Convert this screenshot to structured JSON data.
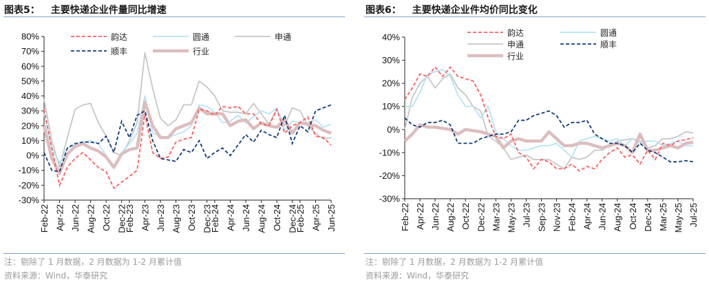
{
  "charts": [
    {
      "figure_label": "图表5：",
      "title": "主要快递企业件量同比增速",
      "note": "注：剔除了 1 月数据，2 月数据为 1-2 月累计值",
      "source": "资料来源：Wind，华泰研究"
    },
    {
      "figure_label": "图表6：",
      "title": "主要快递企业件均价同比变化",
      "note": "注：剔除了 1 月数据，2 月数据为 1-2 月累计值",
      "source": "资料来源：Wind，华泰研究"
    }
  ],
  "colors": {
    "yunda": "#ff5b5b",
    "yto": "#b5e3f6",
    "sto": "#c6c6c6",
    "sf": "#0d3a7c",
    "industry": "#dcbdbd",
    "axis": "#222222",
    "rule": "#7e9cc4"
  },
  "chart_data": [
    {
      "type": "line",
      "title": "主要快递企业件量同比增速",
      "ylim": [
        -30,
        80
      ],
      "yticks": [
        "80%",
        "70%",
        "60%",
        "50%",
        "40%",
        "30%",
        "20%",
        "10%",
        "0%",
        "-10%",
        "-20%",
        "-30%"
      ],
      "ytick_values": [
        80,
        70,
        60,
        50,
        40,
        30,
        20,
        10,
        0,
        -10,
        -20,
        -30
      ],
      "x": [
        "Feb-22",
        "Mar-22",
        "Apr-22",
        "May-22",
        "Jun-22",
        "Jul-22",
        "Aug-22",
        "Sep-22",
        "Oct-22",
        "Nov-22",
        "Dec-22",
        "Feb-23",
        "Mar-23",
        "Apr-23",
        "May-23",
        "Jun-23",
        "Jul-23",
        "Aug-23",
        "Sep-23",
        "Oct-23",
        "Nov-23",
        "Dec-23",
        "Feb-24",
        "Mar-24",
        "Apr-24",
        "May-24",
        "Jun-24",
        "Jul-24",
        "Aug-24",
        "Sep-24",
        "Oct-24",
        "Nov-24",
        "Dec-24",
        "Feb-25",
        "Mar-25",
        "Apr-25",
        "May-25",
        "Jun-25"
      ],
      "xticks": [
        "Feb-22",
        "Apr-22",
        "Jun-22",
        "Aug-22",
        "Oct-22",
        "Dec-22",
        "Feb-23",
        "Apr-23",
        "Jun-23",
        "Aug-23",
        "Oct-23",
        "Dec-23",
        "Feb-24",
        "Apr-24",
        "Jun-24",
        "Aug-24",
        "Oct-24",
        "Dec-24",
        "Feb-25",
        "Apr-25",
        "Jun-25"
      ],
      "legend_position": "top",
      "series": [
        {
          "key": "yunda",
          "name": "韵达",
          "style": "dashed",
          "values": [
            31,
            5,
            -20,
            -8,
            -2,
            2,
            -3,
            -8,
            -11,
            -22,
            -18,
            -14,
            -10,
            28,
            2,
            -2,
            -1,
            9,
            11,
            12,
            31,
            30,
            27,
            33,
            32,
            33,
            28,
            28,
            21,
            20,
            31,
            15,
            20,
            22,
            26,
            13,
            12,
            7
          ]
        },
        {
          "key": "yto",
          "name": "圆通",
          "style": "solid",
          "values": [
            28,
            5,
            -5,
            5,
            7,
            9,
            10,
            8,
            0,
            -8,
            2,
            8,
            15,
            40,
            15,
            13,
            12,
            14,
            16,
            20,
            34,
            33,
            29,
            22,
            23,
            27,
            22,
            26,
            30,
            28,
            32,
            17,
            23,
            22,
            22,
            24,
            19,
            21
          ]
        },
        {
          "key": "sto",
          "name": "申通",
          "style": "solid",
          "values": [
            38,
            10,
            -8,
            12,
            31,
            34,
            35,
            22,
            13,
            2,
            0,
            10,
            22,
            69,
            45,
            25,
            20,
            24,
            34,
            34,
            50,
            46,
            40,
            30,
            29,
            29,
            28,
            35,
            28,
            21,
            31,
            20,
            32,
            30,
            20,
            15,
            11,
            12
          ]
        },
        {
          "key": "sf",
          "name": "顺丰",
          "style": "dashed",
          "values": [
            2,
            -10,
            -11,
            5,
            8,
            9,
            9,
            8,
            13,
            2,
            23,
            12,
            27,
            30,
            10,
            -2,
            -3,
            -4,
            4,
            2,
            10,
            -2,
            2,
            5,
            0,
            7,
            14,
            9,
            17,
            14,
            12,
            27,
            8,
            20,
            16,
            30,
            32,
            34
          ]
        },
        {
          "key": "industry",
          "name": "行业",
          "style": "thick",
          "values": [
            20,
            -2,
            -12,
            1,
            6,
            8,
            5,
            3,
            -1,
            -8,
            1,
            4,
            5,
            36,
            20,
            12,
            12,
            18,
            20,
            22,
            32,
            28,
            28,
            28,
            20,
            23,
            24,
            18,
            22,
            20,
            19,
            24,
            15,
            22,
            21,
            20,
            17,
            15
          ]
        }
      ]
    },
    {
      "type": "line",
      "title": "主要快递企业件均价同比变化",
      "ylim": [
        -30,
        40
      ],
      "yticks": [
        "40%",
        "30%",
        "20%",
        "10%",
        "0%",
        "-10%",
        "-20%",
        "-30%"
      ],
      "ytick_values": [
        40,
        30,
        20,
        10,
        0,
        -10,
        -20,
        -30
      ],
      "x": [
        "Feb-22",
        "Mar-22",
        "Apr-22",
        "May-22",
        "Jun-22",
        "Jul-22",
        "Aug-22",
        "Sep-22",
        "Oct-22",
        "Nov-22",
        "Dec-22",
        "Feb-23",
        "Mar-23",
        "Apr-23",
        "May-23",
        "Jun-23",
        "Jul-23",
        "Aug-23",
        "Sep-23",
        "Oct-23",
        "Nov-23",
        "Dec-23",
        "Feb-24",
        "Mar-24",
        "Apr-24",
        "May-24",
        "Jun-24",
        "Jul-24",
        "Aug-24",
        "Sep-24",
        "Oct-24",
        "Nov-24",
        "Dec-24",
        "Feb-25",
        "Mar-25",
        "Apr-25",
        "May-25",
        "Jun-25",
        "Jul-25"
      ],
      "xticks": [
        "Feb-22",
        "Apr-22",
        "Jun-22",
        "Aug-22",
        "Oct-22",
        "Dec-22",
        "Mar-23",
        "May-23",
        "Jul-23",
        "Sep-23",
        "Nov-23",
        "Feb-24",
        "Apr-24",
        "Jun-24",
        "Aug-24",
        "Oct-24",
        "Dec-24",
        "Mar-25",
        "May-25",
        "Jul-25"
      ],
      "legend_position": "top",
      "series": [
        {
          "key": "yunda",
          "name": "韵达",
          "style": "dashed",
          "values": [
            13,
            18,
            24,
            23,
            27,
            23,
            27,
            23,
            22,
            21,
            15,
            5,
            -3,
            -4,
            -2,
            -10,
            -12,
            -17,
            -13,
            -14,
            -17,
            -17,
            -15,
            -18,
            -16,
            -17,
            -13,
            -10,
            -8,
            -12,
            -11,
            -15,
            -9,
            -13,
            -6,
            -7,
            -5,
            -4.5,
            -3.5
          ]
        },
        {
          "key": "yto",
          "name": "圆通",
          "style": "solid",
          "values": [
            10,
            10,
            16,
            24,
            25,
            26,
            23,
            15,
            10,
            10,
            5,
            10,
            -1,
            -4,
            -7,
            -9,
            -9,
            -8,
            -7,
            -7,
            -6,
            -9,
            -12,
            -5,
            -4,
            -3,
            -4,
            -5,
            -4,
            -7,
            -4,
            -6,
            -5,
            -5,
            -7,
            -6,
            -5,
            -7,
            -7
          ]
        },
        {
          "key": "sto",
          "name": "申通",
          "style": "solid",
          "values": [
            0,
            14,
            20,
            23,
            18,
            22,
            24,
            18,
            15,
            10,
            8,
            -3,
            -5,
            -8,
            -13,
            -12,
            -11,
            -13,
            -13,
            -13,
            -15,
            -17,
            -12,
            -13,
            -12,
            -9,
            -9,
            -7,
            -5,
            -4.5,
            -4,
            -5,
            -8,
            -7,
            -4,
            -4,
            -3,
            -1,
            -1.5
          ]
        },
        {
          "key": "sf",
          "name": "顺丰",
          "style": "dashed",
          "values": [
            5,
            2,
            1,
            3,
            3,
            4,
            2,
            -6,
            -6,
            -6,
            -4,
            -3,
            -2,
            -2,
            -1,
            4,
            4,
            6,
            7,
            8,
            6,
            1,
            3,
            3,
            4,
            -2,
            -4,
            -6,
            -6,
            -7,
            -10,
            -6,
            -9,
            -10,
            -12,
            -14,
            -14,
            -13.5,
            -14
          ]
        },
        {
          "key": "industry",
          "name": "行业",
          "style": "thick",
          "values": [
            -5,
            -2,
            2,
            1,
            1,
            0.5,
            0,
            -2,
            0,
            -0.5,
            -1,
            -2,
            -3,
            -8,
            -5,
            -4,
            -5,
            -5,
            -5,
            -1,
            -4,
            -7,
            -7,
            -6,
            -6,
            -7,
            -8,
            -7,
            -6,
            -7,
            -10,
            -2,
            -9,
            -9,
            -8,
            -7,
            -8,
            -6,
            -5.5
          ]
        }
      ]
    }
  ]
}
